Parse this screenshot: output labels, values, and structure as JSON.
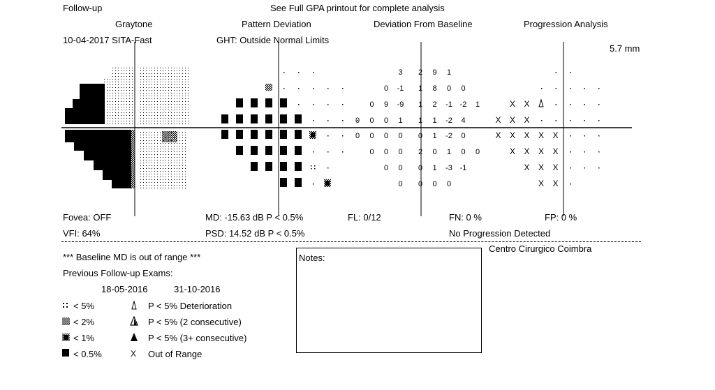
{
  "header": {
    "follow_up": "Follow-up",
    "gpa_note": "See Full GPA printout for complete analysis",
    "date_strategy": "10-04-2017 SITA-Fast",
    "ght": "GHT: Outside Normal Limits",
    "mm": "5.7 mm"
  },
  "columns": {
    "graytone": "Graytone",
    "pattern": "Pattern Deviation",
    "baseline": "Deviation From Baseline",
    "progression": "Progression Analysis"
  },
  "stats": {
    "fovea": "Fovea: OFF",
    "md": "MD: -15.63 dB  P < 0.5%",
    "fl": "FL: 0/12",
    "fn": "FN:  0 %",
    "fp": "FP:  0 %",
    "vfi": "VFI:  64%",
    "psd": "PSD:  14.52 dB  P < 0.5%",
    "progression": "No Progression Detected",
    "clinic": "Centro Cirurgico Coimbra"
  },
  "baseline_info": {
    "md_warning": "*** Baseline MD is out of range ***",
    "previous": "Previous Follow-up Exams:",
    "date1": "18-05-2016",
    "date2": "31-10-2016"
  },
  "notes": {
    "label": "Notes:"
  },
  "legend": {
    "p5": "< 5%",
    "p2": "< 2%",
    "p1": "< 1%",
    "p05": "< 0.5%",
    "det": "P < 5% Deterioration",
    "two": "P < 5% (2 consecutive)",
    "three": "P < 5% (3+ consecutive)",
    "oor": "Out of Range"
  },
  "deviation_rows": [
    [
      "3",
      "2",
      "9",
      "1"
    ],
    [
      "0",
      "-1",
      "1",
      "8",
      "0",
      "0"
    ],
    [
      "0",
      "9",
      "-9",
      "1",
      "2",
      "-1",
      "-2",
      "1"
    ],
    [
      "0",
      "0",
      "0",
      "1",
      "1",
      "1",
      "-2",
      "4"
    ],
    [
      "0",
      "0",
      "0",
      "0",
      "0",
      "1",
      "-2",
      "0"
    ],
    [
      "0",
      "0",
      "0",
      "2",
      "0",
      "1",
      "0",
      "0"
    ],
    [
      "0",
      "0",
      "0",
      "1",
      "-3",
      "-1"
    ],
    [
      "0",
      "0",
      "0",
      "0"
    ]
  ]
}
